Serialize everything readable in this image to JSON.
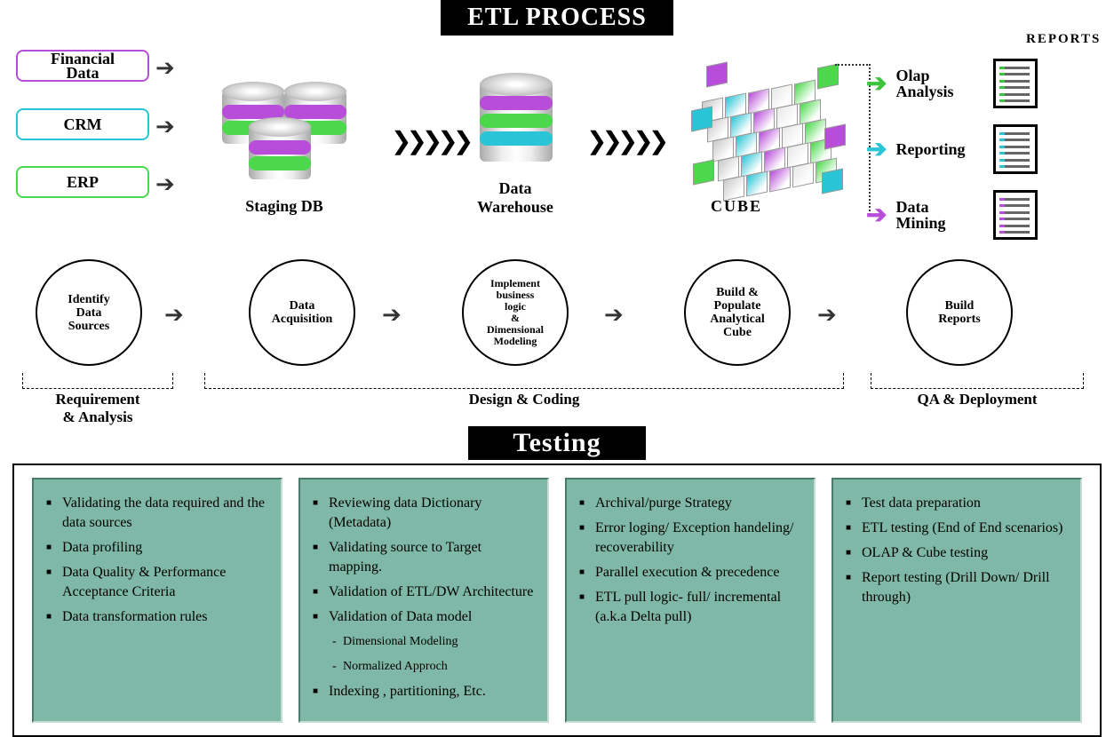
{
  "title_etl": "ETL PROCESS",
  "title_testing": "Testing",
  "reports_header": "REPORTS",
  "sources": {
    "financial": {
      "label": "Financial\nData",
      "color": "#b84dd9"
    },
    "crm": {
      "label": "CRM",
      "color": "#29c5d6"
    },
    "erp": {
      "label": "ERP",
      "color": "#4bd94b"
    }
  },
  "stages": {
    "staging": "Staging DB",
    "warehouse": "Data\nWarehouse",
    "cube": "CUBE"
  },
  "outputs": {
    "olap": {
      "label": "Olap\nAnalysis",
      "arrow_color": "#3cc43c",
      "dot_color": "#3cc43c"
    },
    "reporting": {
      "label": "Reporting",
      "arrow_color": "#29c5d6",
      "dot_color": "#29c5d6"
    },
    "mining": {
      "label": "Data\nMining",
      "arrow_color": "#b84dd9",
      "dot_color": "#b84dd9"
    }
  },
  "steps": [
    {
      "label": "Identify\nData\nSources"
    },
    {
      "label": "Data\nAcquisition"
    },
    {
      "label": "Implement\nbusiness\nlogic\n&\nDimensional\nModeling"
    },
    {
      "label": "Build &\nPopulate\nAnalytical\nCube"
    },
    {
      "label": "Build\nReports"
    }
  ],
  "phases": {
    "req": "Requirement\n& Analysis",
    "design": "Design & Coding",
    "qa": "QA & Deployment"
  },
  "testing_cols": [
    [
      {
        "t": "Validating the data required and the data sources"
      },
      {
        "t": "Data profiling"
      },
      {
        "t": "Data Quality & Performance Acceptance Criteria"
      },
      {
        "t": "Data transformation rules"
      }
    ],
    [
      {
        "t": "Reviewing data Dictionary (Metadata)"
      },
      {
        "t": "Validating source to Target mapping."
      },
      {
        "t": "Validation of ETL/DW Architecture"
      },
      {
        "t": "Validation of Data model"
      },
      {
        "t": "Dimensional Modeling",
        "sub": true
      },
      {
        "t": "Normalized Approch",
        "sub": true
      },
      {
        "t": "Indexing , partitioning, Etc."
      }
    ],
    [
      {
        "t": "Archival/purge Strategy"
      },
      {
        "t": "Error loging/ Exception handeling/ recoverability"
      },
      {
        "t": "Parallel execution & precedence"
      },
      {
        "t": "ETL pull logic- full/ incremental (a.k.a Delta pull)"
      }
    ],
    [
      {
        "t": "Test data preparation"
      },
      {
        "t": "ETL testing (End of End scenarios)"
      },
      {
        "t": "OLAP & Cube testing"
      },
      {
        "t": "Report testing (Drill Down/ Drill through)"
      }
    ]
  ],
  "band_colors": [
    "#b84dd9",
    "#4bd94b",
    "#29c5d6"
  ],
  "cube_colors": [
    "#c9c9c9",
    "#b84dd9",
    "#4bd94b",
    "#29c5d6",
    "#e8e8e8"
  ]
}
